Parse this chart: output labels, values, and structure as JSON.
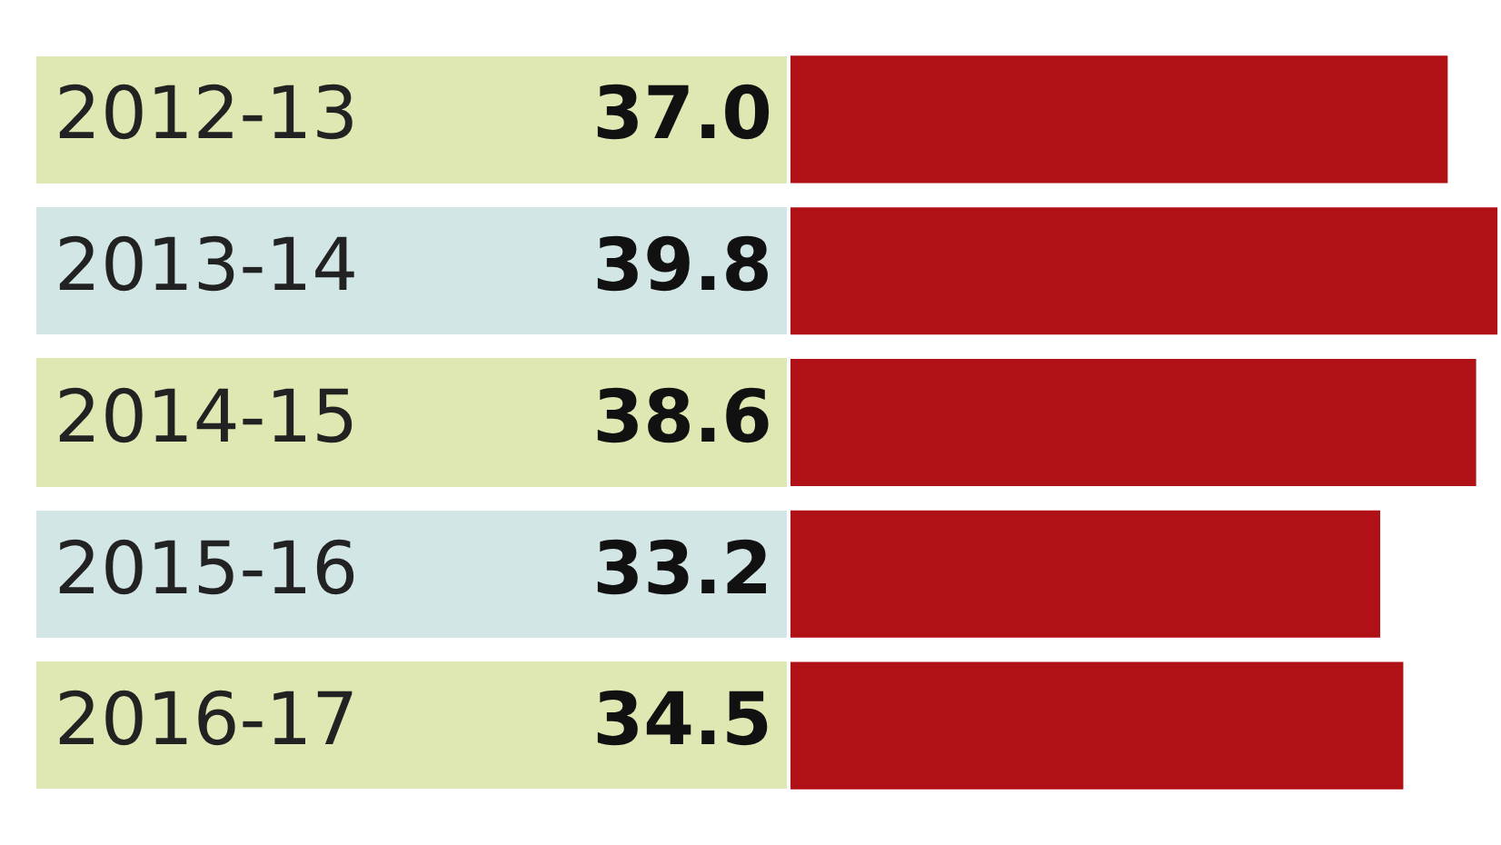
{
  "chart_data": {
    "type": "bar",
    "orientation": "horizontal",
    "categories": [
      "2012-13",
      "2013-14",
      "2014-15",
      "2015-16",
      "2016-17"
    ],
    "values": [
      37.0,
      39.8,
      38.6,
      33.2,
      34.5
    ],
    "value_labels": [
      "37.0",
      "39.8",
      "38.6",
      "33.2",
      "34.5"
    ],
    "color": "#b01116",
    "grid": false,
    "legend": false,
    "tick_labels": "y"
  }
}
